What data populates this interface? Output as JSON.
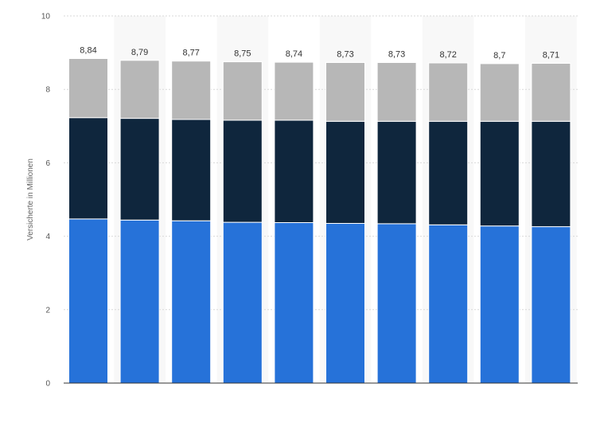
{
  "chart_data": {
    "type": "bar",
    "stacked": true,
    "title": "",
    "xlabel": "",
    "ylabel": "Versicherte in Millionen",
    "ylim": [
      0,
      10
    ],
    "yticks": [
      0,
      2,
      4,
      6,
      8,
      10
    ],
    "categories": [
      "",
      "",
      "",
      "",
      "",
      "",
      "",
      "",
      "",
      ""
    ],
    "series": [
      {
        "name": "",
        "color": "#2672d9",
        "values": [
          4.47,
          4.44,
          4.42,
          4.38,
          4.37,
          4.35,
          4.34,
          4.31,
          4.28,
          4.26
        ]
      },
      {
        "name": "",
        "color": "#0f263d",
        "values": [
          2.76,
          2.77,
          2.76,
          2.78,
          2.79,
          2.78,
          2.79,
          2.82,
          2.85,
          2.87
        ]
      },
      {
        "name": "",
        "color": "#b7b7b7",
        "values": [
          1.61,
          1.58,
          1.59,
          1.59,
          1.58,
          1.6,
          1.6,
          1.59,
          1.57,
          1.58
        ]
      }
    ],
    "totals_labels": [
      "8,84",
      "8,79",
      "8,77",
      "8,75",
      "8,74",
      "8,73",
      "8,73",
      "8,72",
      "8,7",
      "8,71"
    ],
    "grid": true
  },
  "colors": {
    "band": "#f8f8f8",
    "grid": "#d9d9d9",
    "axis": "#333333"
  }
}
